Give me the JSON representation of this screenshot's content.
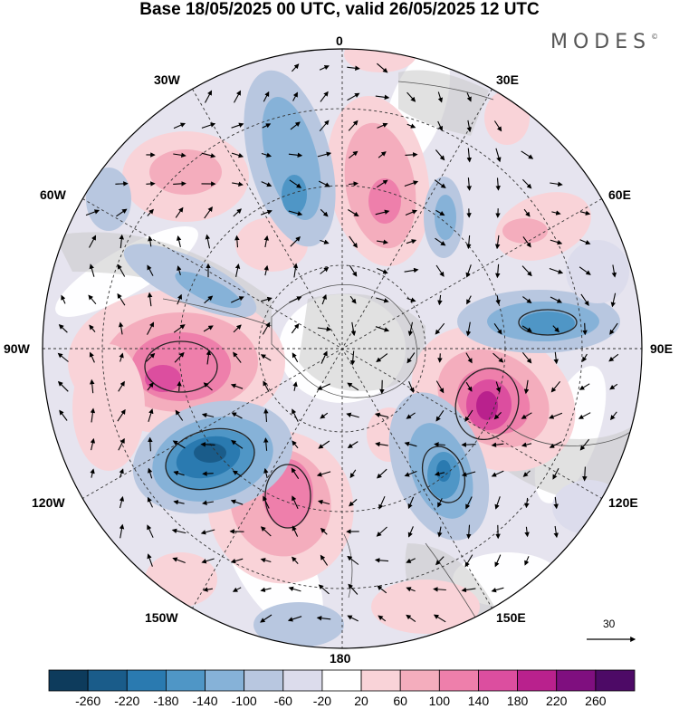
{
  "title": "Base 18/05/2025 00 UTC, valid 26/05/2025 12 UTC",
  "brand": "MODES",
  "brand_mark": "©",
  "longitude_labels": {
    "lon_0": "0",
    "lon_30e": "30E",
    "lon_60e": "60E",
    "lon_90e": "90E",
    "lon_120e": "120E",
    "lon_150e": "150E",
    "lon_180": "180",
    "lon_150w": "150W",
    "lon_120w": "120W",
    "lon_90w": "90W",
    "lon_60w": "60W",
    "lon_30w": "30W"
  },
  "reference_vector": {
    "label": "30"
  },
  "colorbar": {
    "ticks": [
      "-260",
      "-220",
      "-180",
      "-140",
      "-100",
      "-60",
      "-20",
      "20",
      "60",
      "100",
      "140",
      "180",
      "220",
      "260"
    ],
    "colors": [
      "#0d3b5c",
      "#1a5c8a",
      "#2a7ab0",
      "#4f96c6",
      "#86b2d8",
      "#b8c7e0",
      "#dcdcec",
      "#ffffff",
      "#f9d3d8",
      "#f4adbd",
      "#ee7fab",
      "#dc4e9f",
      "#b9218d",
      "#7f0f7f",
      "#4d0a66"
    ]
  },
  "map": {
    "projection": "south polar stereographic",
    "field": "anomaly, shaded",
    "vectors": "wind arrows",
    "graticule": "dashed, every 30 degrees"
  }
}
